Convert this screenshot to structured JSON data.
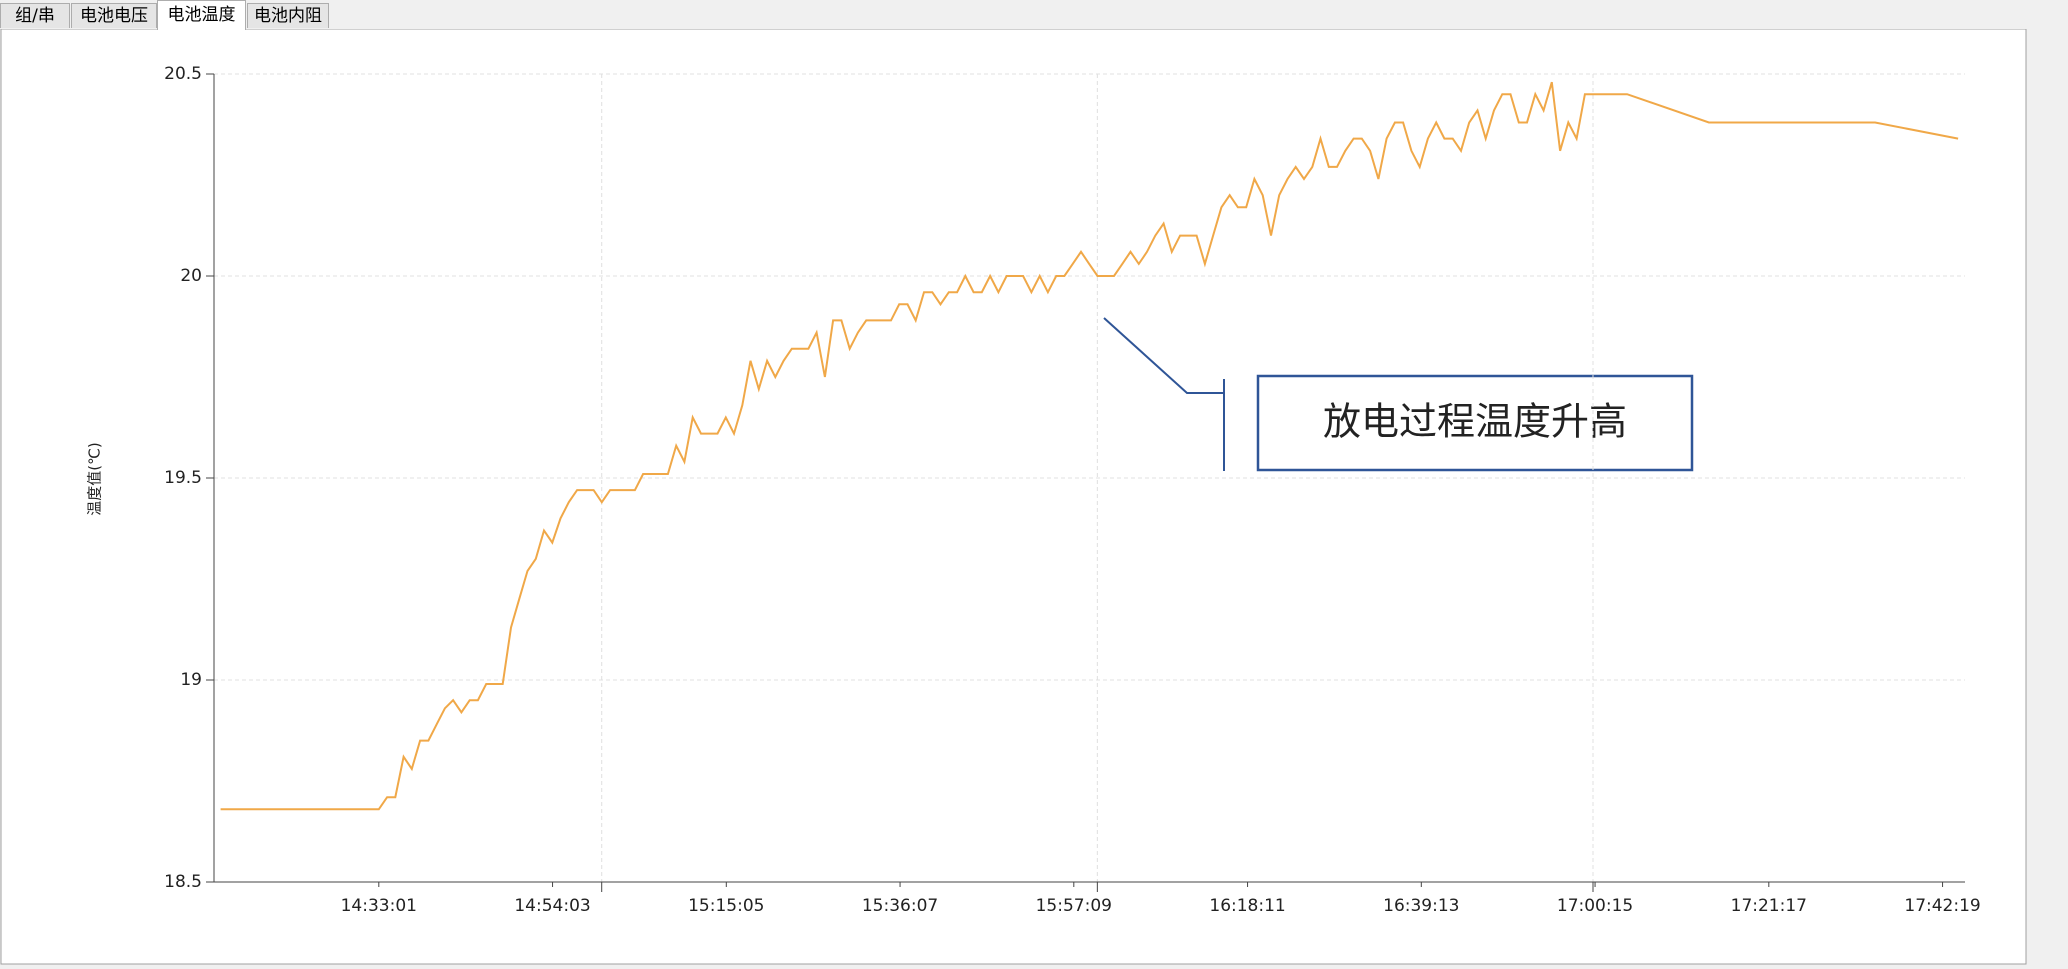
{
  "tabs": [
    "组/串",
    "电池电压",
    "电池温度",
    "电池内阻"
  ],
  "selected_tab": 2,
  "chart_data": {
    "type": "line",
    "ylabel": "温度值(℃)",
    "annotation": "放电过程温度升高",
    "xlim": [
      51184,
      63902
    ],
    "ylim": [
      18.5,
      20.5
    ],
    "yticks": [
      18.5,
      19,
      19.5,
      20,
      20.5
    ],
    "xticks": [
      {
        "value": 52381,
        "label": "14:33:01"
      },
      {
        "value": 53643,
        "label": "14:54:03"
      },
      {
        "value": 54905,
        "label": "15:15:05"
      },
      {
        "value": 56167,
        "label": "15:36:07"
      },
      {
        "value": 57429,
        "label": "15:57:09"
      },
      {
        "value": 58691,
        "label": "16:18:11"
      },
      {
        "value": 59953,
        "label": "16:39:13"
      },
      {
        "value": 61215,
        "label": "17:00:15"
      },
      {
        "value": 62477,
        "label": "17:21:17"
      },
      {
        "value": 63739,
        "label": "17:42:19"
      }
    ],
    "xgrid": [
      54000,
      57600,
      61200
    ],
    "grid": true,
    "series": [
      {
        "color": "#f0a848",
        "x": [
          51232,
          52381,
          52441,
          52501,
          52561,
          52621,
          52681,
          52741,
          52801,
          52861,
          52921,
          52981,
          53041,
          53101,
          53161,
          53221,
          53281,
          53341,
          53401,
          53461,
          53521,
          53581,
          53641,
          53701,
          53761,
          53821,
          53881,
          53941,
          54001,
          54061,
          54121,
          54181,
          54241,
          54301,
          54361,
          54421,
          54481,
          54541,
          54601,
          54661,
          54721,
          54781,
          54841,
          54901,
          54961,
          55021,
          55081,
          55141,
          55201,
          55261,
          55321,
          55381,
          55441,
          55501,
          55561,
          55621,
          55681,
          55741,
          55801,
          55861,
          55921,
          55981,
          56041,
          56101,
          56161,
          56221,
          56281,
          56341,
          56401,
          56461,
          56521,
          56581,
          56641,
          56701,
          56761,
          56821,
          56881,
          56941,
          57001,
          57061,
          57121,
          57181,
          57241,
          57301,
          57361,
          57421,
          57481,
          57541,
          57601,
          57661,
          57721,
          57781,
          57841,
          57901,
          57961,
          58021,
          58081,
          58141,
          58201,
          58261,
          58321,
          58381,
          58441,
          58501,
          58561,
          58621,
          58681,
          58741,
          58801,
          58861,
          58921,
          58981,
          59041,
          59101,
          59161,
          59221,
          59281,
          59341,
          59401,
          59461,
          59521,
          59581,
          59641,
          59701,
          59761,
          59821,
          59881,
          59941,
          60001,
          60061,
          60121,
          60181,
          60241,
          60301,
          60361,
          60421,
          60481,
          60541,
          60601,
          60661,
          60721,
          60781,
          60841,
          60901,
          60961,
          61021,
          61081,
          61141,
          61448,
          62042,
          63249,
          63852
        ],
        "values": [
          18.68,
          18.68,
          18.71,
          18.71,
          18.81,
          18.78,
          18.85,
          18.85,
          18.89,
          18.93,
          18.95,
          18.92,
          18.95,
          18.95,
          18.99,
          18.99,
          18.99,
          19.13,
          19.2,
          19.27,
          19.3,
          19.37,
          19.34,
          19.4,
          19.44,
          19.47,
          19.47,
          19.47,
          19.44,
          19.47,
          19.47,
          19.47,
          19.47,
          19.51,
          19.51,
          19.51,
          19.51,
          19.58,
          19.54,
          19.65,
          19.61,
          19.61,
          19.61,
          19.65,
          19.61,
          19.68,
          19.79,
          19.72,
          19.79,
          19.75,
          19.79,
          19.82,
          19.82,
          19.82,
          19.86,
          19.75,
          19.89,
          19.89,
          19.82,
          19.86,
          19.89,
          19.89,
          19.89,
          19.89,
          19.93,
          19.93,
          19.89,
          19.96,
          19.96,
          19.93,
          19.96,
          19.96,
          20.0,
          19.96,
          19.96,
          20.0,
          19.96,
          20.0,
          20.0,
          20.0,
          19.96,
          20.0,
          19.96,
          20.0,
          20.0,
          20.03,
          20.06,
          20.03,
          20.0,
          20.0,
          20.0,
          20.03,
          20.06,
          20.03,
          20.06,
          20.1,
          20.13,
          20.06,
          20.1,
          20.1,
          20.1,
          20.03,
          20.1,
          20.17,
          20.2,
          20.17,
          20.17,
          20.24,
          20.2,
          20.1,
          20.2,
          20.24,
          20.27,
          20.24,
          20.27,
          20.34,
          20.27,
          20.27,
          20.31,
          20.34,
          20.34,
          20.31,
          20.24,
          20.34,
          20.38,
          20.38,
          20.31,
          20.27,
          20.34,
          20.38,
          20.34,
          20.34,
          20.31,
          20.38,
          20.41,
          20.34,
          20.41,
          20.45,
          20.45,
          20.38,
          20.38,
          20.45,
          20.41,
          20.48,
          20.31,
          20.38,
          20.34,
          20.45,
          20.45,
          20.38,
          20.38,
          20.34
        ]
      }
    ]
  }
}
